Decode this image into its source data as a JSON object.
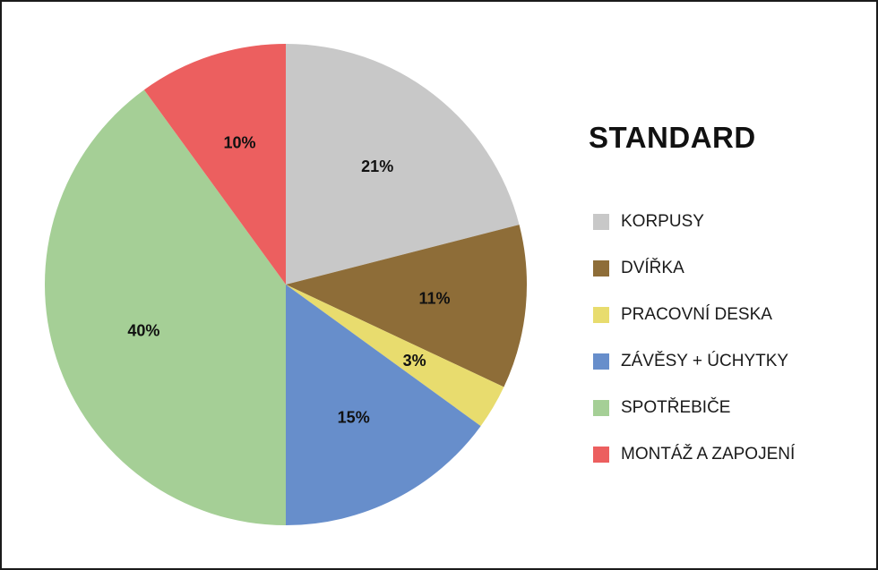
{
  "chart_data": {
    "type": "pie",
    "title": "STANDARD",
    "categories": [
      "KORPUSY",
      "DVÍŘKA",
      "PRACOVNÍ DESKA",
      "ZÁVĚSY + ÚCHYTKY",
      "SPOTŘEBIČE",
      "MONTÁŽ A ZAPOJENÍ"
    ],
    "values": [
      21,
      11,
      3,
      15,
      40,
      10
    ],
    "labels": [
      "21%",
      "11%",
      "3%",
      "15%",
      "40%",
      "10%"
    ],
    "colors": [
      "#c8c8c8",
      "#8e6d38",
      "#e8dc6e",
      "#678ecb",
      "#a5cf96",
      "#ec5f5f"
    ],
    "unit": "%",
    "start": "12 o'clock",
    "direction": "clockwise",
    "legend_position": "right"
  }
}
